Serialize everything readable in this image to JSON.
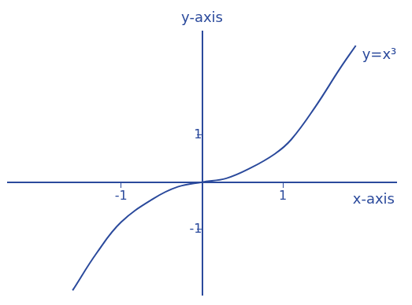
{
  "chart_data": {
    "type": "line",
    "x_label": "x-axis",
    "y_label": "y-axis",
    "x": [
      -1.6,
      -1.3,
      -1.0,
      -0.6,
      -0.3,
      0,
      0.3,
      0.6,
      0.9,
      1.1,
      1.4,
      1.7,
      1.9
    ],
    "series": [
      {
        "name": "y=x³",
        "color": "#2b4a9c",
        "values": [
          -2.3,
          -1.5,
          -0.85,
          -0.35,
          -0.1,
          0,
          0.08,
          0.3,
          0.6,
          0.9,
          1.6,
          2.4,
          2.9
        ]
      }
    ],
    "xlim": [
      -2.4,
      2.4
    ],
    "xticks": [
      -1,
      1
    ],
    "ylim": [
      -2.4,
      3.2
    ],
    "yticks": [
      -1,
      1
    ],
    "grid": false
  }
}
